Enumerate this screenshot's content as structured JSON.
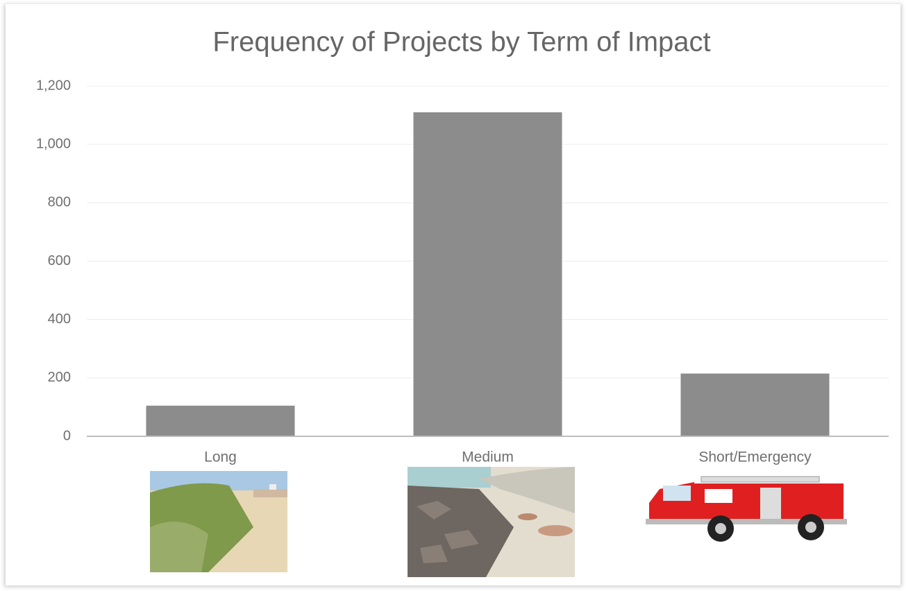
{
  "chart_data": {
    "type": "bar",
    "title": "Frequency of Projects by Term of Impact",
    "categories": [
      "Long",
      "Medium",
      "Short/Emergency"
    ],
    "values": [
      105,
      1110,
      215
    ],
    "color": "#8c8c8c",
    "ylim": [
      0,
      1200
    ],
    "yticks": [
      0,
      200,
      400,
      600,
      800,
      {
        "value": 1000,
        "label": "1,000"
      },
      {
        "value": 1200,
        "label": "1,200"
      }
    ],
    "grid": true
  }
}
